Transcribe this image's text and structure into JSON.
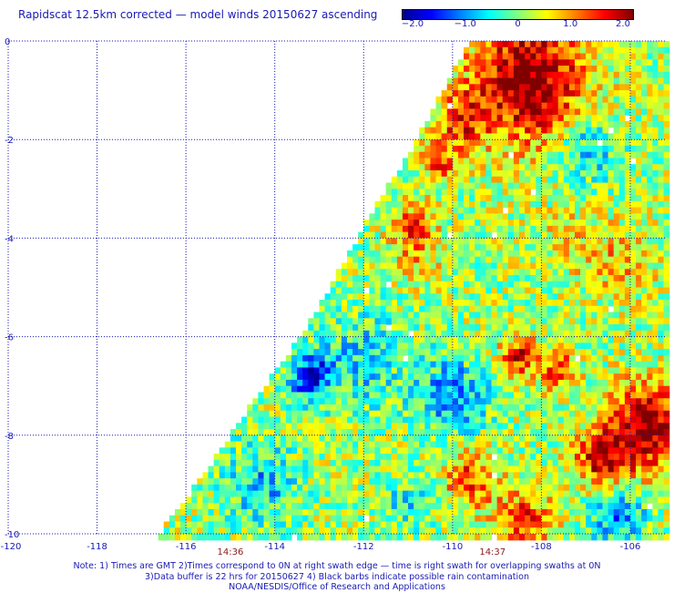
{
  "header": {
    "title": "Rapidscat 12.5km corrected — model winds 20150627 ascending"
  },
  "colorbar": {
    "stops": [
      "#00008f",
      "#0000ff",
      "#0080ff",
      "#00ffff",
      "#80ff80",
      "#ffff00",
      "#ff8000",
      "#ff0000",
      "#800000"
    ],
    "tick_labels": [
      "−2.0",
      "−1.0",
      "0",
      "1.0",
      "2.0"
    ],
    "range": [
      -2.0,
      2.0
    ]
  },
  "chart_data": {
    "type": "heatmap",
    "title": "Rapidscat 12.5km corrected — model winds 20150627 ascending",
    "xlabel": "",
    "ylabel": "",
    "xlim": [
      -120,
      -105.2
    ],
    "ylim": [
      -10,
      0
    ],
    "x_ticks": [
      -120,
      -118,
      -116,
      -114,
      -112,
      -110,
      -108,
      -106
    ],
    "x_tick_labels": [
      "-120",
      "-118",
      "-116",
      "-114",
      "-112",
      "-110",
      "-108",
      "-106"
    ],
    "y_ticks": [
      0,
      -2,
      -4,
      -6,
      -8,
      -10
    ],
    "y_tick_labels": [
      "0",
      "-2",
      "-4",
      "-6",
      "-8",
      "-10"
    ],
    "grid": true,
    "value_range": [
      -2.0,
      2.0
    ],
    "swath_left_edge": [
      [
        -109.6,
        0
      ],
      [
        -110.8,
        -2
      ],
      [
        -111.9,
        -3.6
      ],
      [
        -113.2,
        -5.7
      ],
      [
        -114.7,
        -7.6
      ],
      [
        -115.6,
        -8.8
      ],
      [
        -116.6,
        -10
      ]
    ],
    "time_labels": [
      {
        "text": "14:36",
        "x": -115.0
      },
      {
        "text": "14:37",
        "x": -109.1
      }
    ],
    "anomaly_regions": [
      {
        "lon": -108.3,
        "lat": -0.8,
        "r": 1.6,
        "v": 2.1
      },
      {
        "lon": -109.8,
        "lat": -1.6,
        "r": 0.7,
        "v": 1.3
      },
      {
        "lon": -110.9,
        "lat": -3.7,
        "r": 0.6,
        "v": 1.0
      },
      {
        "lon": -110.3,
        "lat": -2.5,
        "r": 0.5,
        "v": 1.1
      },
      {
        "lon": -110.8,
        "lat": -4.3,
        "r": 0.7,
        "v": 0.7
      },
      {
        "lon": -107.0,
        "lat": -2.2,
        "r": 0.9,
        "v": -0.7
      },
      {
        "lon": -112.0,
        "lat": -6.5,
        "r": 1.2,
        "v": -0.6
      },
      {
        "lon": -113.2,
        "lat": -6.8,
        "r": 0.6,
        "v": -1.5
      },
      {
        "lon": -114.3,
        "lat": -9.0,
        "r": 1.0,
        "v": -0.7
      },
      {
        "lon": -110.0,
        "lat": -7.2,
        "r": 1.0,
        "v": -0.9
      },
      {
        "lon": -108.5,
        "lat": -6.4,
        "r": 0.5,
        "v": 1.6
      },
      {
        "lon": -107.6,
        "lat": -6.7,
        "r": 0.5,
        "v": 1.4
      },
      {
        "lon": -105.6,
        "lat": -7.8,
        "r": 1.1,
        "v": 2.0
      },
      {
        "lon": -106.6,
        "lat": -8.5,
        "r": 0.8,
        "v": 1.6
      },
      {
        "lon": -109.6,
        "lat": -8.9,
        "r": 0.7,
        "v": 1.3
      },
      {
        "lon": -106.3,
        "lat": -9.6,
        "r": 0.8,
        "v": -1.0
      },
      {
        "lon": -108.4,
        "lat": -9.7,
        "r": 0.8,
        "v": 1.3
      },
      {
        "lon": -111.0,
        "lat": -9.3,
        "r": 0.7,
        "v": -0.4
      },
      {
        "lon": -106.2,
        "lat": -4.5,
        "r": 1.0,
        "v": 0.7
      },
      {
        "lon": -107.3,
        "lat": -4.0,
        "r": 0.9,
        "v": 0.5
      }
    ],
    "background_value": 0.15
  },
  "notes": {
    "line1": "Note: 1) Times are GMT 2)Times correspond to 0N at right swath edge — time is right swath for overlapping swaths at 0N",
    "line2": "3)Data buffer is 22 hrs for 20150627 4) Black barbs indicate possible rain contamination",
    "line3": "NOAA/NESDIS/Office of Research and Applications"
  }
}
